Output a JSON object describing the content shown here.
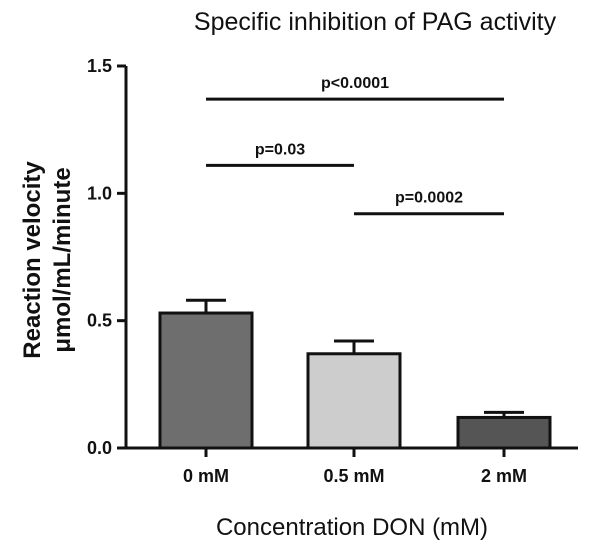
{
  "chart_data": {
    "type": "bar",
    "title": "Specific inhibition of PAG activity",
    "xlabel": "Concentration DON (mM)",
    "ylabel_lines": [
      "Reaction velocity",
      "μmol/mL/minute"
    ],
    "categories": [
      "0 mM",
      "0.5 mM",
      "2 mM"
    ],
    "values": [
      0.53,
      0.37,
      0.12
    ],
    "errors": [
      0.05,
      0.05,
      0.02
    ],
    "bar_colors": [
      "#6e6e6e",
      "#cdcdcd",
      "#555555"
    ],
    "ylim": [
      0,
      1.5
    ],
    "yticks": [
      "0.0",
      "0.5",
      "1.0",
      "1.5"
    ],
    "ytick_values": [
      0,
      0.5,
      1.0,
      1.5
    ],
    "grid": false,
    "annotations": [
      {
        "label": "p<0.0001",
        "from": 0,
        "to": 2,
        "y": 1.37
      },
      {
        "label": "p=0.03",
        "from": 0,
        "to": 1,
        "y": 1.11
      },
      {
        "label": "p=0.0002",
        "from": 1,
        "to": 2,
        "y": 0.92
      }
    ]
  }
}
